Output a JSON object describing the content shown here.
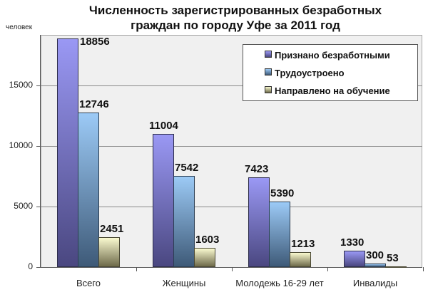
{
  "chart_data": {
    "type": "bar",
    "title": "Численность зарегистрированных безработных граждан по городу Уфе за 2011 год",
    "title_lines": [
      "Численность зарегистрированных безработных",
      "граждан по городу Уфе за 2011 год"
    ],
    "xlabel": "",
    "ylabel": "человек",
    "ylim": [
      0,
      19200
    ],
    "yticks": [
      0,
      5000,
      10000,
      15000
    ],
    "grid": true,
    "legend_position": "upper right",
    "categories": [
      "Всего",
      "Женщины",
      "Молодежь 16-29 лет",
      "Инвалиды"
    ],
    "series": [
      {
        "name": "Признано безработными",
        "color": "#8f8cec",
        "values": [
          18856,
          11004,
          7423,
          1330
        ]
      },
      {
        "name": "Трудоустроено",
        "color": "#8fc0ef",
        "values": [
          12746,
          7542,
          5390,
          300
        ]
      },
      {
        "name": "Направлено на обучение",
        "color": "#eeeec0",
        "values": [
          2451,
          1603,
          1213,
          53
        ]
      }
    ]
  }
}
